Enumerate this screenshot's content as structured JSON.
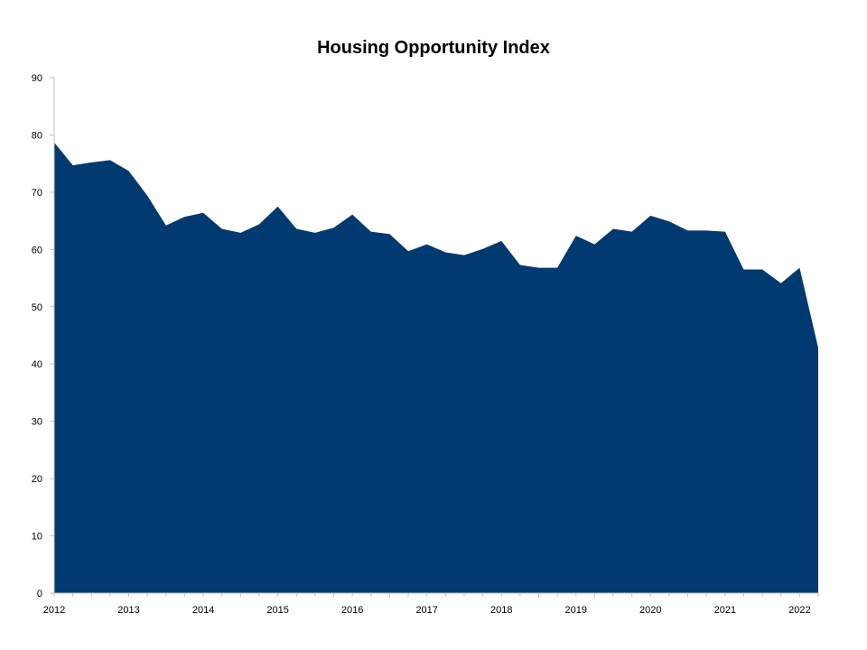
{
  "chart_data": {
    "type": "area",
    "title": "Housing Opportunity Index",
    "xlabel": "",
    "ylabel": "",
    "ylim": [
      0,
      90
    ],
    "yticks": [
      "0",
      "10",
      "20",
      "30",
      "40",
      "50",
      "60",
      "70",
      "80",
      "90"
    ],
    "xticks": [
      "2012",
      "2013",
      "2014",
      "2015",
      "2016",
      "2017",
      "2018",
      "2019",
      "2020",
      "2021",
      "2022"
    ],
    "grid": false,
    "legend": "none",
    "color": "#003A70",
    "series": [
      {
        "quarters": [
          "2012 Q1",
          "2012 Q2",
          "2012 Q3",
          "2012 Q4",
          "2013 Q1",
          "2013 Q2",
          "2013 Q3",
          "2013 Q4",
          "2014 Q1",
          "2014 Q2",
          "2014 Q3",
          "2014 Q4",
          "2015 Q1",
          "2015 Q2",
          "2015 Q3",
          "2015 Q4",
          "2016 Q1",
          "2016 Q2",
          "2016 Q3",
          "2016 Q4",
          "2017 Q1",
          "2017 Q2",
          "2017 Q3",
          "2017 Q4",
          "2018 Q1",
          "2018 Q2",
          "2018 Q3",
          "2018 Q4",
          "2019 Q1",
          "2019 Q2",
          "2019 Q3",
          "2019 Q4",
          "2020 Q1",
          "2020 Q2",
          "2020 Q3",
          "2020 Q4",
          "2021 Q1",
          "2021 Q2",
          "2021 Q3",
          "2021 Q4",
          "2022 Q1",
          "2022 Q2"
        ],
        "values": [
          78.7,
          74.7,
          75.2,
          75.6,
          73.7,
          69.4,
          64.2,
          65.7,
          66.4,
          63.6,
          62.9,
          64.4,
          67.5,
          63.6,
          62.9,
          63.8,
          66.1,
          63.1,
          62.7,
          59.7,
          60.9,
          59.5,
          59.0,
          60.1,
          61.5,
          57.3,
          56.8,
          56.8,
          62.4,
          60.9,
          63.6,
          63.1,
          65.9,
          64.9,
          63.3,
          63.3,
          63.1,
          56.5,
          56.5,
          54.1,
          56.8,
          42.8
        ]
      }
    ]
  }
}
